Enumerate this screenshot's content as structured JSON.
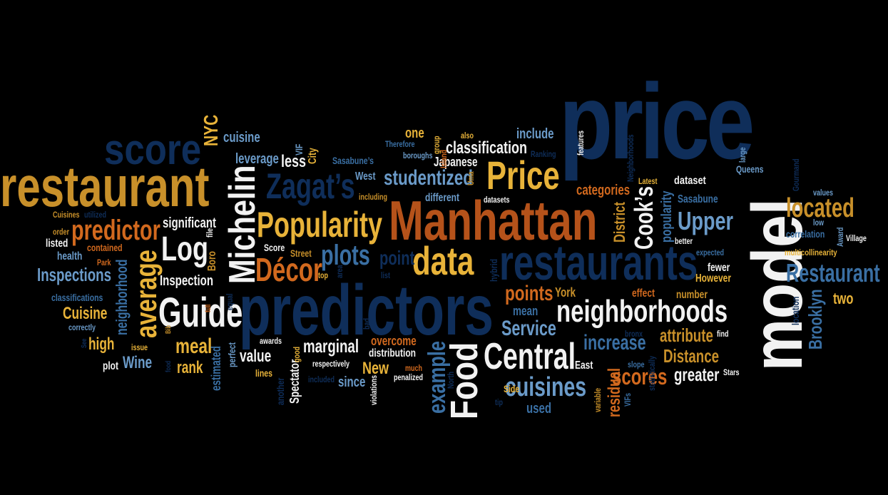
{
  "words": {
    "price": "price",
    "model": "model",
    "restaurant": "restaurant",
    "predictors": "predictors",
    "manhattan": "Manhattan",
    "restaurants": "restaurants",
    "score": "score",
    "guide": "Guide",
    "michelin": "Michelin",
    "price_cap": "Price",
    "popularity": "Popularity",
    "zagats": "Zagat’s",
    "data": "data",
    "neighborhoods": "neighborhoods",
    "central": "Central",
    "food": "Food",
    "cuisines": "cuisines",
    "log": "Log",
    "average": "average",
    "predictor": "predictor",
    "decor": "Décor",
    "plots": "plots",
    "studentized": "studentized",
    "located": "located",
    "restaurant_cap": "Restaurant",
    "upper": "Upper",
    "cooks": "Cook’s",
    "scores": "scores",
    "example": "example",
    "meal": "meal",
    "points": "points",
    "service": "Service",
    "increase": "increase",
    "attribute": "attribute",
    "distance": "Distance",
    "greater": "greater",
    "brooklyn": "Brooklyn",
    "inspections": "Inspections",
    "cuisine_cap": "Cuisine",
    "nyc": "NYC",
    "classification": "classification",
    "categories": "categories",
    "marginal": "marginal",
    "value": "value",
    "new": "New",
    "wine": "Wine",
    "rank": "rank",
    "high": "high",
    "residual": "residual",
    "district": "District",
    "popularity_lc": "popularity",
    "neighborhood": "neighborhood",
    "inspection": "Inspection",
    "significant": "significant",
    "leverage": "leverage",
    "less": "less",
    "cuisine": "cuisine",
    "one": "one",
    "include": "include",
    "japanese": "Japanese",
    "point": "point",
    "different": "different",
    "city": "City",
    "west": "West",
    "sasabune": "Sasabune",
    "sasabunes": "Sasabune’s",
    "dataset": "dataset",
    "queens": "Queens",
    "fewer": "fewer",
    "however": "However",
    "two": "two",
    "york": "York",
    "mean": "mean",
    "used": "used",
    "overcome": "overcome",
    "distribution": "distribution",
    "since": "since",
    "spectator": "Spectator",
    "estimated": "estimated",
    "boro": "Boro",
    "score_cap": "Score",
    "street": "Street",
    "effect": "effect",
    "number": "number",
    "location": "location",
    "correlation": "correlation",
    "values": "values",
    "low": "low",
    "better": "better",
    "expected": "expected",
    "multicollinearity": "multicollinearity",
    "village": "Village",
    "award": "Award",
    "gourmand": "Gourmand",
    "latest": "Latest",
    "large": "large",
    "neighborhoods_cap": "Neighborhoods",
    "features": "features",
    "ranking": "Ranking",
    "also": "also",
    "group": "group",
    "island": "Island",
    "therefore": "Therefore",
    "boroughs": "boroughs",
    "vif": "VIF",
    "including": "including",
    "uma": "Uma",
    "datasets": "datasets",
    "hybrid": "hybrid",
    "violations": "violations",
    "list": "list",
    "area": "area",
    "top": "top",
    "bad": "bad",
    "awards": "awards",
    "good": "good",
    "perfect": "perfect",
    "equal": "equal",
    "lines": "lines",
    "another": "another",
    "included": "included",
    "respectively": "respectively",
    "much": "much",
    "penalized": "penalized",
    "north": "North",
    "tip": "tip",
    "side": "Side",
    "variable": "variable",
    "vifs": "VIFs",
    "slope": "slope",
    "statistically": "statistically",
    "bronx": "bronx",
    "find": "find",
    "east": "East",
    "stars": "Stars",
    "cuisines_cap": "Cuisines",
    "utilized": "utilized",
    "order": "order",
    "listed": "listed",
    "contained": "contained",
    "health": "health",
    "park": "Park",
    "classifications": "classifications",
    "correctly": "correctly",
    "see": "See",
    "plot": "plot",
    "issue": "issue",
    "food_lc": "food",
    "bib": "Bib",
    "file": "file",
    "fulltext": "full"
  }
}
